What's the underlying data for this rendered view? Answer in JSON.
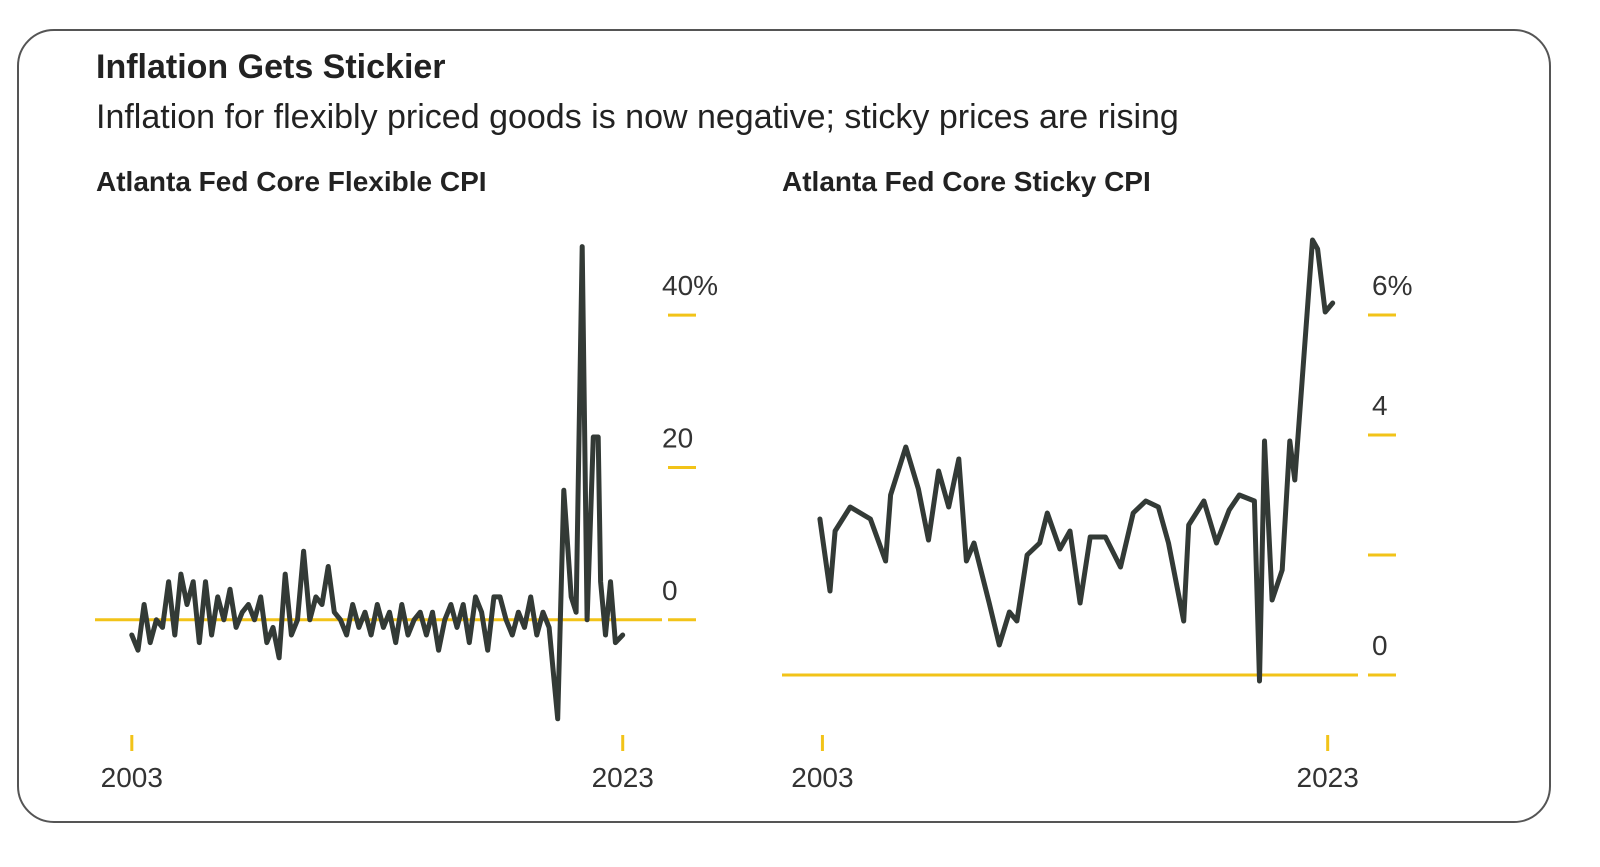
{
  "title": "Inflation Gets Stickier",
  "subtitle": "Inflation for flexibly priced goods is now negative; sticky prices are rising",
  "chart_data": [
    {
      "type": "line",
      "title": "Atlanta Fed Core Flexible CPI",
      "color": "#333a36",
      "axis_color": "#f2c318",
      "x": [
        2003,
        2003.25,
        2003.5,
        2003.75,
        2004,
        2004.25,
        2004.5,
        2004.75,
        2005,
        2005.25,
        2005.5,
        2005.75,
        2006,
        2006.25,
        2006.5,
        2006.75,
        2007,
        2007.25,
        2007.5,
        2007.75,
        2008,
        2008.25,
        2008.5,
        2008.75,
        2009,
        2009.25,
        2009.5,
        2009.75,
        2010,
        2010.25,
        2010.5,
        2010.75,
        2011,
        2011.25,
        2011.5,
        2011.75,
        2012,
        2012.25,
        2012.5,
        2012.75,
        2013,
        2013.25,
        2013.5,
        2013.75,
        2014,
        2014.25,
        2014.5,
        2014.75,
        2015,
        2015.25,
        2015.5,
        2015.75,
        2016,
        2016.25,
        2016.5,
        2016.75,
        2017,
        2017.25,
        2017.5,
        2017.75,
        2018,
        2018.25,
        2018.5,
        2018.75,
        2019,
        2019.25,
        2019.5,
        2019.75,
        2020,
        2020.35,
        2020.6,
        2020.9,
        2021.1,
        2021.35,
        2021.55,
        2021.8,
        2022,
        2022.1,
        2022.3,
        2022.5,
        2022.7,
        2023
      ],
      "values": [
        -2,
        -4,
        2,
        -3,
        0,
        -1,
        5,
        -2,
        6,
        2,
        5,
        -3,
        5,
        -2,
        3,
        0,
        4,
        -1,
        1,
        2,
        0,
        3,
        -3,
        -1,
        -5,
        6,
        -2,
        0,
        9,
        0,
        3,
        2,
        7,
        1,
        0,
        -2,
        2,
        -1,
        1,
        -2,
        2,
        -1,
        1,
        -3,
        2,
        -2,
        0,
        1,
        -2,
        1,
        -4,
        0,
        2,
        -1,
        2,
        -3,
        3,
        1,
        -4,
        3,
        3,
        0,
        -2,
        1,
        -1,
        3,
        -2,
        1,
        -1,
        -13,
        17,
        3,
        1,
        49,
        0,
        24,
        24,
        5,
        -2,
        5,
        -3,
        -2
      ],
      "xlim": [
        2001.5,
        2024.6
      ],
      "xticks": [
        2003,
        2023
      ],
      "ylim": [
        -15,
        50
      ],
      "yticks": [
        0,
        20,
        {
          "value": 40,
          "label": "40%"
        }
      ]
    },
    {
      "type": "line",
      "title": "Atlanta Fed Core Sticky CPI",
      "color": "#333a36",
      "axis_color": "#f2c318",
      "x": [
        2002.9,
        2003.3,
        2003.5,
        2004.1,
        2004.9,
        2005.5,
        2005.7,
        2006.3,
        2006.8,
        2007.2,
        2007.6,
        2008.0,
        2008.4,
        2008.7,
        2009.0,
        2009.6,
        2010.0,
        2010.4,
        2010.7,
        2011.1,
        2011.6,
        2011.9,
        2012.4,
        2012.8,
        2013.2,
        2013.6,
        2014.2,
        2014.8,
        2015.3,
        2015.8,
        2016.3,
        2016.7,
        2017.3,
        2017.5,
        2018.1,
        2018.6,
        2019.1,
        2019.5,
        2020.1,
        2020.3,
        2020.5,
        2020.8,
        2021.2,
        2021.5,
        2021.7,
        2022.4,
        2022.6,
        2022.9,
        2023.2
      ],
      "values": [
        2.6,
        1.4,
        2.4,
        2.8,
        2.6,
        1.9,
        3.0,
        3.8,
        3.1,
        2.25,
        3.4,
        2.8,
        3.6,
        1.9,
        2.2,
        1.2,
        0.5,
        1.05,
        0.9,
        2.0,
        2.2,
        2.7,
        2.1,
        2.4,
        1.2,
        2.3,
        2.3,
        1.8,
        2.7,
        2.9,
        2.8,
        2.2,
        0.9,
        2.5,
        2.9,
        2.2,
        2.75,
        3.0,
        2.9,
        -0.1,
        3.9,
        1.25,
        1.75,
        3.9,
        3.25,
        7.25,
        7.1,
        6.05,
        6.2
      ],
      "xlim": [
        2001.4,
        2024.2
      ],
      "xticks": [
        2003,
        2023
      ],
      "ylim": [
        -0.5,
        7.5
      ],
      "yticks": [
        0,
        {
          "value": 2,
          "label": null
        },
        4,
        {
          "value": 6,
          "label": "6%"
        }
      ]
    }
  ]
}
